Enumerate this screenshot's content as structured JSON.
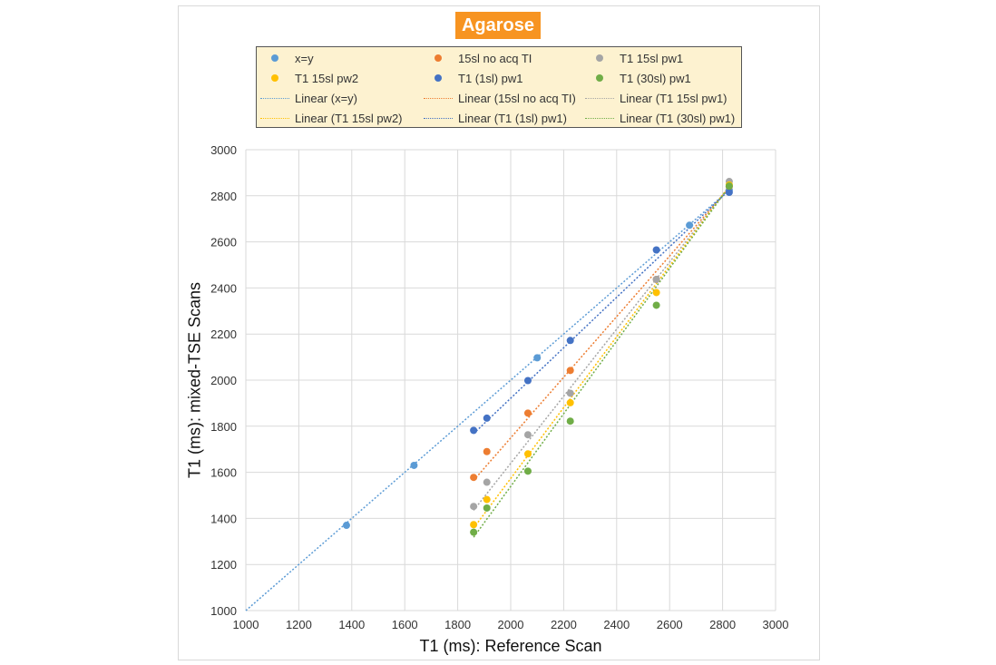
{
  "chart_data": {
    "type": "scatter",
    "title": "Agarose",
    "xlabel": "T1 (ms): Reference Scan",
    "ylabel": "T1 (ms): mixed-TSE Scans",
    "xlim": [
      1000,
      3000
    ],
    "ylim": [
      1000,
      3000
    ],
    "xticks": [
      "1000",
      "1200",
      "1400",
      "1600",
      "1800",
      "2000",
      "2200",
      "2400",
      "2600",
      "2800",
      "3000"
    ],
    "yticks": [
      "1000",
      "1200",
      "1400",
      "1600",
      "1800",
      "2000",
      "2200",
      "2400",
      "2600",
      "2800",
      "3000"
    ],
    "grid": true,
    "legend_position": "top",
    "series": [
      {
        "name": "x=y",
        "color": "#5b9bd5",
        "x": [
          1380,
          1635,
          2100,
          2675,
          2825
        ],
        "y": [
          1370,
          1630,
          2097,
          2672,
          2825
        ]
      },
      {
        "name": "15sl no acq TI",
        "color": "#ed7d31",
        "x": [
          1860,
          1910,
          2065,
          2225,
          2550,
          2825
        ],
        "y": [
          1578,
          1690,
          1857,
          2042,
          2437,
          2840
        ]
      },
      {
        "name": "T1 15sl pw1",
        "color": "#a5a5a5",
        "x": [
          1860,
          1910,
          2065,
          2225,
          2550,
          2825
        ],
        "y": [
          1452,
          1557,
          1763,
          1943,
          2437,
          2862
        ]
      },
      {
        "name": "T1 15sl pw2",
        "color": "#ffc000",
        "x": [
          1860,
          1910,
          2065,
          2225,
          2550,
          2825
        ],
        "y": [
          1373,
          1482,
          1680,
          1902,
          2380,
          2847
        ]
      },
      {
        "name": "T1 (1sl) pw1",
        "color": "#4472c4",
        "x": [
          1860,
          1910,
          2065,
          2225,
          2550,
          2825
        ],
        "y": [
          1782,
          1835,
          1998,
          2172,
          2565,
          2815
        ]
      },
      {
        "name": "T1 (30sl) pw1",
        "color": "#70ad47",
        "x": [
          1860,
          1910,
          2065,
          2225,
          2550,
          2825
        ],
        "y": [
          1340,
          1445,
          1605,
          1822,
          2325,
          2842
        ]
      }
    ],
    "trendlines": [
      {
        "name": "Linear (x=y)",
        "color": "#5b9bd5",
        "from": [
          1000,
          1000
        ],
        "to": [
          2825,
          2825
        ]
      },
      {
        "name": "Linear (15sl no acq TI)",
        "color": "#ed7d31",
        "from": [
          1860,
          1565
        ],
        "to": [
          2825,
          2835
        ]
      },
      {
        "name": "Linear (T1 15sl pw1)",
        "color": "#a5a5a5",
        "from": [
          1860,
          1435
        ],
        "to": [
          2825,
          2840
        ]
      },
      {
        "name": "Linear (T1 15sl pw2)",
        "color": "#ffc000",
        "from": [
          1860,
          1358
        ],
        "to": [
          2825,
          2842
        ]
      },
      {
        "name": "Linear (T1 (1sl) pw1)",
        "color": "#4472c4",
        "from": [
          1860,
          1768
        ],
        "to": [
          2825,
          2825
        ]
      },
      {
        "name": "Linear (T1 (30sl) pw1)",
        "color": "#70ad47",
        "from": [
          1860,
          1318
        ],
        "to": [
          2825,
          2840
        ]
      }
    ]
  },
  "legend": {
    "items": [
      {
        "label": "x=y",
        "kind": "dot",
        "color": "#5b9bd5"
      },
      {
        "label": "15sl no acq TI",
        "kind": "dot",
        "color": "#ed7d31"
      },
      {
        "label": "T1 15sl pw1",
        "kind": "dot",
        "color": "#a5a5a5"
      },
      {
        "label": "T1 15sl pw2",
        "kind": "dot",
        "color": "#ffc000"
      },
      {
        "label": "T1 (1sl) pw1",
        "kind": "dot",
        "color": "#4472c4"
      },
      {
        "label": "T1 (30sl) pw1",
        "kind": "dot",
        "color": "#70ad47"
      },
      {
        "label": "Linear (x=y)",
        "kind": "line",
        "color": "#5b9bd5"
      },
      {
        "label": "Linear (15sl no acq TI)",
        "kind": "line",
        "color": "#ed7d31"
      },
      {
        "label": "Linear (T1 15sl pw1)",
        "kind": "line",
        "color": "#a5a5a5"
      },
      {
        "label": "Linear (T1 15sl pw2)",
        "kind": "line",
        "color": "#ffc000"
      },
      {
        "label": "Linear (T1 (1sl) pw1)",
        "kind": "line",
        "color": "#4472c4"
      },
      {
        "label": "Linear (T1 (30sl) pw1)",
        "kind": "line",
        "color": "#70ad47"
      }
    ]
  }
}
